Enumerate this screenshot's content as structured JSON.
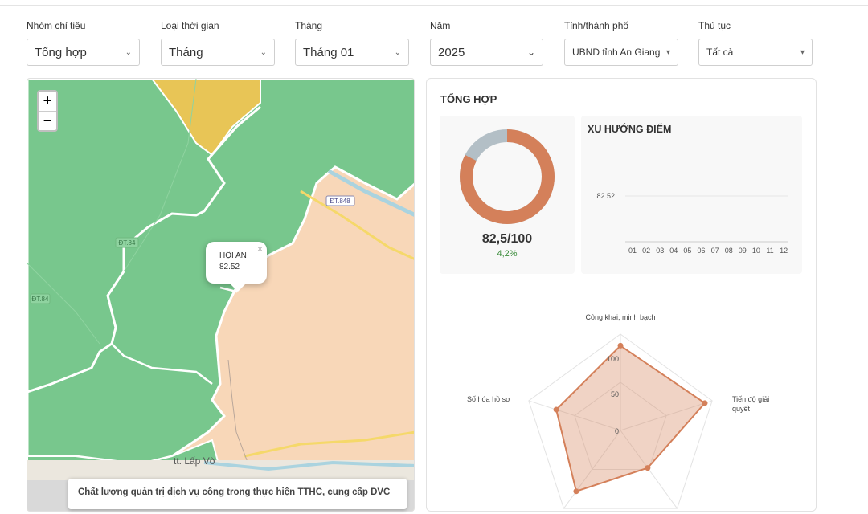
{
  "filters": [
    {
      "label": "Nhóm chỉ tiêu",
      "value": "Tổng hợp"
    },
    {
      "label": "Loại thời gian",
      "value": "Tháng"
    },
    {
      "label": "Tháng",
      "value": "Tháng 01"
    },
    {
      "label": "Năm",
      "value": "2025"
    },
    {
      "label": "Tỉnh/thành phố",
      "value": "UBND tỉnh An Giang"
    },
    {
      "label": "Thủ tục",
      "value": "Tất cả"
    }
  ],
  "map": {
    "zoom_in": "+",
    "zoom_out": "−",
    "popup": {
      "name": "HỘI AN",
      "value": "82.52",
      "close": "×"
    },
    "road_labels": [
      "ĐT.848",
      "ĐT.84",
      "ĐT.84"
    ],
    "town_label": "tt. Lấp Vò",
    "caption": "Chất lượng quản trị dịch vụ công trong thực hiện TTHC, cung cấp DVC",
    "colors": {
      "green": "#78c78d",
      "yellow": "#e8c556",
      "peach": "#f8d7b8"
    }
  },
  "panel": {
    "title": "TỔNG HỢP",
    "score": "82,5/100",
    "change": "4,2%",
    "donut": {
      "value": 82.5,
      "max": 100,
      "fill_color": "#d4805a",
      "rest_color": "#b3bfc6"
    },
    "trend": {
      "title": "XU HƯỚNG ĐIỂM",
      "y_tick": "82.52",
      "months": [
        "01",
        "02",
        "03",
        "04",
        "05",
        "06",
        "07",
        "08",
        "09",
        "10",
        "11",
        "12"
      ]
    }
  },
  "chart_data": {
    "type": "radar",
    "axes": [
      "Công khai, minh bạch",
      "Tiến độ giải quyết",
      "",
      "",
      "Số hóa hồ sơ"
    ],
    "ticks": [
      "100",
      "50",
      "0"
    ],
    "range": [
      0,
      100
    ],
    "series": [
      {
        "values": [
          88,
          92,
          48,
          78,
          70
        ],
        "color": "#d4805a"
      }
    ]
  }
}
